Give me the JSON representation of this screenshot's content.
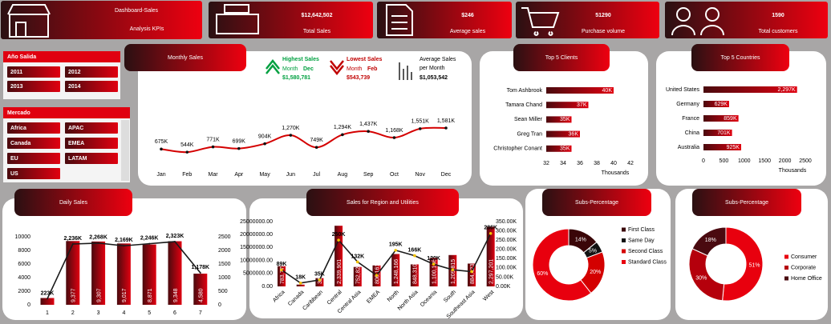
{
  "header": {
    "title_line1": "Dashboard-Sales",
    "title_line2": "Analysis KPIs"
  },
  "kpis": [
    {
      "value": "$12,642,502",
      "label": "Total Sales"
    },
    {
      "value": "$246",
      "label": "Average sales"
    },
    {
      "value": "51290",
      "label": "Purchase volume"
    },
    {
      "value": "1590",
      "label": "Total customers"
    }
  ],
  "slicers": [
    {
      "title": "Año Salida",
      "items": [
        "2011",
        "2012",
        "2013",
        "2014"
      ]
    },
    {
      "title": "Mercado",
      "items": [
        "Africa",
        "APAC",
        "Canada",
        "EMEA",
        "EU",
        "LATAM",
        "US"
      ]
    }
  ],
  "chart_data": [
    {
      "type": "line",
      "title": "Monthly Sales",
      "categories": [
        "Jan",
        "Feb",
        "Mar",
        "Apr",
        "May",
        "Jun",
        "Jul",
        "Aug",
        "Sep",
        "Oct",
        "Nov",
        "Dec"
      ],
      "values": [
        675,
        544,
        771,
        699,
        904,
        1270,
        749,
        1294,
        1437,
        1168,
        1551,
        1581
      ],
      "value_labels": [
        "675K",
        "544K",
        "771K",
        "699K",
        "904K",
        "1,270K",
        "749K",
        "1,294K",
        "1,437K",
        "1,168K",
        "1,551K",
        "1,581K"
      ],
      "color": "#d40000",
      "annotations": {
        "highest": {
          "label": "Highest Sales",
          "month_label": "Month",
          "month": "Dec",
          "value": "$1,580,781"
        },
        "lowest": {
          "label": "Lowest Sales",
          "month_label": "Month",
          "month": "Feb",
          "value": "$543,739"
        },
        "average": {
          "label": "Average Sales",
          "label2": "per Month",
          "value": "$1,053,542"
        }
      }
    },
    {
      "type": "bar",
      "orientation": "horizontal",
      "title": "Top 5 Clients",
      "categories": [
        "Tom Ashbrook",
        "Tamara Chand",
        "Sean Miller",
        "Greg Tran",
        "Christopher Conant"
      ],
      "values": [
        40,
        37,
        35,
        36,
        35
      ],
      "value_labels": [
        "40K",
        "37K",
        "35K",
        "36K",
        "35K"
      ],
      "xlim": [
        32,
        42
      ],
      "xticks": [
        32,
        34,
        36,
        38,
        40,
        42
      ],
      "xlabel": "Thousands",
      "color": "#c00000"
    },
    {
      "type": "bar",
      "orientation": "horizontal",
      "title": "Top 5 Countries",
      "categories": [
        "United States",
        "Germany",
        "France",
        "China",
        "Australia"
      ],
      "values": [
        2297,
        629,
        859,
        701,
        925
      ],
      "value_labels": [
        "2,297K",
        "629K",
        "859K",
        "701K",
        "925K"
      ],
      "xlim": [
        0,
        2500
      ],
      "xticks": [
        0,
        500,
        1000,
        1500,
        2000,
        2500
      ],
      "xlabel": "Thousands",
      "color": "#c00000"
    },
    {
      "type": "combo",
      "title": "Daily Sales",
      "categories": [
        "1",
        "2",
        "3",
        "4",
        "5",
        "6",
        "7"
      ],
      "series": [
        {
          "type": "bar",
          "color": "#c00000",
          "values": [
            1000,
            9377,
            9307,
            9017,
            8871,
            9348,
            4580
          ],
          "value_labels": [
            null,
            "9,377",
            "9,307",
            "9,017",
            "8,871",
            "9,348",
            "4,580"
          ]
        },
        {
          "type": "line",
          "axis": "y2",
          "color": "#1a1a1a",
          "values": [
            223,
            2236,
            2268,
            2169,
            2246,
            2323,
            1178
          ],
          "value_labels": [
            "223K",
            "2,236K",
            "2,268K",
            "2,169K",
            "2,246K",
            "2,323K",
            "1,178K"
          ]
        }
      ],
      "ylim": [
        0,
        10000
      ],
      "yticks": [
        0,
        2000,
        4000,
        6000,
        8000,
        10000
      ],
      "y2lim": [
        0,
        2500
      ],
      "y2ticks": [
        0,
        500,
        1000,
        1500,
        2000,
        2500
      ]
    },
    {
      "type": "combo",
      "title": "Sales for Region and Utilities",
      "categories": [
        "Africa",
        "Canada",
        "Caribbean",
        "Central",
        "Central Asia",
        "EMEA",
        "North",
        "North Asia",
        "Oceania",
        "South",
        "Southeast Asia",
        "West"
      ],
      "series": [
        {
          "type": "bar",
          "color": "#c00000",
          "values": [
            7800000,
            700000,
            3200000,
            23400000,
            7500000,
            8100000,
            12500000,
            8500000,
            11000000,
            12100000,
            8800000,
            23000000
          ],
          "labels": [
            "783,773",
            "66,928",
            "324,281",
            "2,339,901",
            "752,827",
            "806,161",
            "1,248,166",
            "848,310",
            "1,100,186",
            "1,209,815",
            "884,423",
            "2,297,201"
          ]
        },
        {
          "type": "line",
          "axis": "y2",
          "color": "#1a1a1a",
          "marker_color": "#f2c200",
          "values": [
            89,
            18,
            35,
            250,
            132,
            60,
            195,
            166,
            120,
            90,
            80,
            286
          ],
          "value_labels": [
            "89K",
            "18K",
            "35K",
            "250K",
            "132K",
            null,
            "195K",
            "166K",
            "120K",
            null,
            null,
            "286K"
          ]
        }
      ],
      "ylim": [
        0,
        25000000
      ],
      "yticks": [
        {
          "value": 0,
          "label": "0.00"
        },
        {
          "value": 5000000,
          "label": "5000000.00"
        },
        {
          "value": 10000000,
          "label": "10000000.00"
        },
        {
          "value": 15000000,
          "label": "15000000.00"
        },
        {
          "value": 20000000,
          "label": "20000000.00"
        },
        {
          "value": 25000000,
          "label": "25000000.00"
        }
      ],
      "y2lim": [
        0,
        350
      ],
      "y2ticks": [
        {
          "value": 0,
          "label": "0.00K"
        },
        {
          "value": 50,
          "label": "50.00K"
        },
        {
          "value": 100,
          "label": "100.00K"
        },
        {
          "value": 150,
          "label": "150.00K"
        },
        {
          "value": 200,
          "label": "200.00K"
        },
        {
          "value": 250,
          "label": "250.00K"
        },
        {
          "value": 300,
          "label": "300.00K"
        },
        {
          "value": 350,
          "label": "350.00K"
        }
      ]
    },
    {
      "type": "donut",
      "title": "Subs-Percentage",
      "categories": [
        "First Class",
        "Same Day",
        "Second Class",
        "Standard Class"
      ],
      "values": [
        14,
        5,
        20,
        60
      ],
      "value_labels": [
        "14%",
        "5%",
        "20%",
        "60%"
      ],
      "colors": [
        "#3a0608",
        "#111111",
        "#d40000",
        "#e8000e"
      ]
    },
    {
      "type": "donut",
      "title": "Subs-Percentage",
      "categories": [
        "Consumer",
        "Corporate",
        "Home Office"
      ],
      "values": [
        51,
        30,
        18
      ],
      "value_labels": [
        "51%",
        "30%",
        "18%"
      ],
      "colors": [
        "#e8000e",
        "#b5000c",
        "#4a0a10"
      ]
    }
  ]
}
